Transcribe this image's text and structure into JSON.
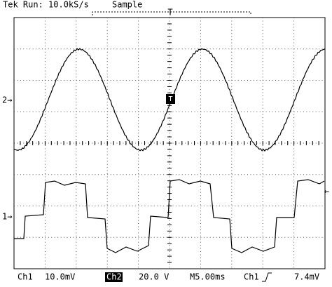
{
  "header": {
    "status": "Tek Run: 10.0kS/s",
    "mode": "Sample",
    "trigger_position": "T"
  },
  "markers": {
    "ch2": "2→",
    "ch1": "1→",
    "trigger": "T",
    "trigger_level": "←"
  },
  "footer": {
    "ch1_label": "Ch1",
    "ch1_scale": "10.0mV",
    "ch2_label": "Ch2",
    "ch2_scale": "20.0 V",
    "timebase": "M5.00ms",
    "trigger_source": "Ch1",
    "trigger_level": "7.4mV"
  }
}
